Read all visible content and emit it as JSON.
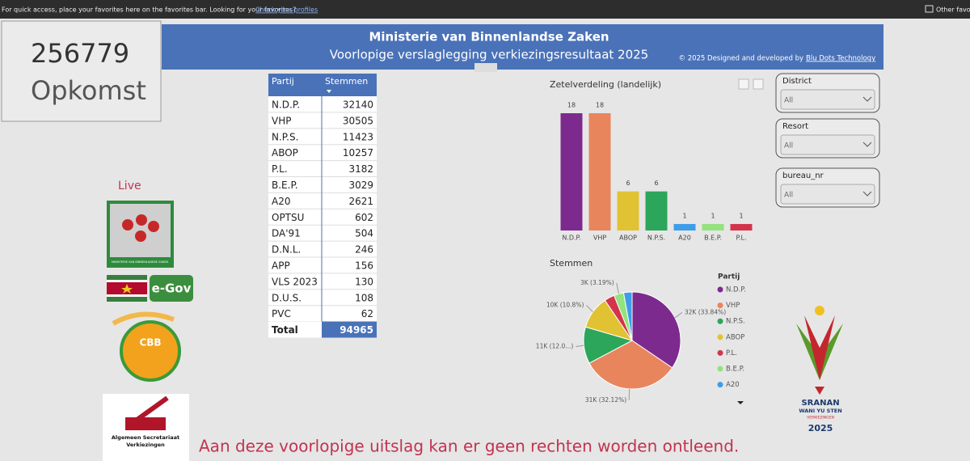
{
  "browser_bar": {
    "message": "For quick access, place your favorites here on the favorites bar. Looking for your favorites?",
    "link": "Check your profiles",
    "other": "Other favorites"
  },
  "kpi": {
    "value": 256779,
    "label": "Opkomst"
  },
  "header": {
    "title": "Ministerie van Binnenlandse Zaken",
    "subtitle": "Voorlopige verslaglegging verkiezingsresultaat 2025",
    "credit": "© 2025 Designed and developed by",
    "credit_link": "Blu Dots Technology"
  },
  "table": {
    "columns": [
      "Partij",
      "Stemmen"
    ],
    "rows": [
      [
        "N.D.P.",
        32140
      ],
      [
        "VHP",
        30505
      ],
      [
        "N.P.S.",
        11423
      ],
      [
        "ABOP",
        10257
      ],
      [
        "P.L.",
        3182
      ],
      [
        "B.E.P.",
        3029
      ],
      [
        "A20",
        2621
      ],
      [
        "OPTSU",
        602
      ],
      [
        "DA'91",
        504
      ],
      [
        "D.N.L.",
        246
      ],
      [
        "APP",
        156
      ],
      [
        "VLS 2023",
        130
      ],
      [
        "D.U.S.",
        108
      ],
      [
        "PVC",
        62
      ]
    ],
    "total": [
      "Total",
      94965
    ]
  },
  "chart_data": [
    {
      "type": "bar",
      "title": "Zetelverdeling (landelijk)",
      "categories": [
        "N.D.P.",
        "VHP",
        "ABOP",
        "N.P.S.",
        "A20",
        "B.E.P.",
        "P.L."
      ],
      "values": [
        18,
        18,
        6,
        6,
        1,
        1,
        1
      ],
      "colors": [
        "#7d2a8f",
        "#e9855d",
        "#e1c233",
        "#2ca65a",
        "#3e9de8",
        "#93e27d",
        "#d3344b"
      ]
    },
    {
      "type": "pie",
      "title": "Stemmen",
      "legend_title": "Partij",
      "categories": [
        "N.D.P.",
        "VHP",
        "N.P.S.",
        "ABOP",
        "P.L.",
        "B.E.P.",
        "A20"
      ],
      "values": [
        32140,
        30505,
        11423,
        10257,
        3182,
        3029,
        2621
      ],
      "value_labels": [
        "32K (33.84%)",
        "31K (32.12%)",
        "11K (12.0...)",
        "10K (10.8%)",
        null,
        "3K (3.19%)",
        null
      ],
      "colors": [
        "#7d2a8f",
        "#e9855d",
        "#2ca65a",
        "#e1c233",
        "#d3344b",
        "#93e27d",
        "#3e9de8"
      ]
    }
  ],
  "slicers": [
    {
      "label": "District",
      "value": "All"
    },
    {
      "label": "Resort",
      "value": "All"
    },
    {
      "label": "bureau_nr",
      "value": "All"
    }
  ],
  "sidebar": {
    "live": "Live",
    "ministry_logo": "MINISTERIE VAN BINNENLANDSE ZAKEN",
    "egov": "e-Gov",
    "cbb": "CBB",
    "asv": [
      "Algemeen Secretariaat",
      "Verkiezingen"
    ]
  },
  "brand": {
    "line1": "SRANAN",
    "line2": "WANI YU STEN",
    "line3": "VERKIEZINGEN",
    "year": "2025"
  },
  "disclaimer": "Aan deze voorlopige uitslag kan er geen rechten worden ontleend."
}
